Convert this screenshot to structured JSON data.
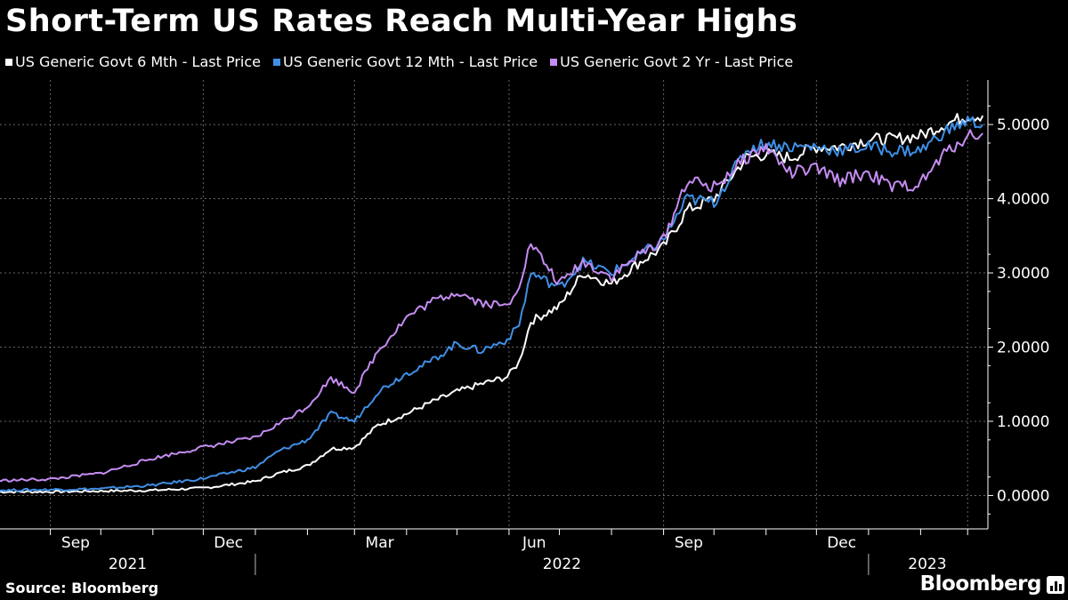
{
  "chart_data": {
    "type": "line",
    "title": "Short-Term US Rates Reach Multi-Year Highs",
    "y_ticks": [
      "0.0000",
      "1.0000",
      "2.0000",
      "3.0000",
      "4.0000",
      "5.0000"
    ],
    "ylim": [
      -0.45,
      5.6
    ],
    "x_ticks": [
      "Sep",
      "Dec",
      "Mar",
      "Jun",
      "Sep",
      "Dec"
    ],
    "x_years": [
      "2021",
      "2022",
      "2023"
    ],
    "x_range": [
      "2021-08-02",
      "2023-03-12"
    ],
    "legend_placement": "top-left",
    "grid": true,
    "series": [
      {
        "name": "US Generic Govt 6 Mth - Last Price",
        "color": "#ffffff",
        "points": [
          [
            "2021-08-01",
            0.05
          ],
          [
            "2021-09-01",
            0.05
          ],
          [
            "2021-10-01",
            0.06
          ],
          [
            "2021-11-01",
            0.07
          ],
          [
            "2021-12-01",
            0.1
          ],
          [
            "2022-01-01",
            0.19
          ],
          [
            "2022-01-15",
            0.3
          ],
          [
            "2022-02-01",
            0.4
          ],
          [
            "2022-02-15",
            0.63
          ],
          [
            "2022-03-01",
            0.65
          ],
          [
            "2022-03-15",
            0.95
          ],
          [
            "2022-04-01",
            1.1
          ],
          [
            "2022-04-15",
            1.25
          ],
          [
            "2022-05-01",
            1.4
          ],
          [
            "2022-05-15",
            1.5
          ],
          [
            "2022-05-31",
            1.6
          ],
          [
            "2022-06-07",
            1.8
          ],
          [
            "2022-06-14",
            2.35
          ],
          [
            "2022-07-01",
            2.55
          ],
          [
            "2022-07-15",
            3.0
          ],
          [
            "2022-08-01",
            2.85
          ],
          [
            "2022-08-15",
            3.1
          ],
          [
            "2022-09-01",
            3.35
          ],
          [
            "2022-09-15",
            3.85
          ],
          [
            "2022-10-01",
            4.0
          ],
          [
            "2022-10-20",
            4.55
          ],
          [
            "2022-11-01",
            4.6
          ],
          [
            "2022-11-15",
            4.55
          ],
          [
            "2022-12-01",
            4.7
          ],
          [
            "2022-12-15",
            4.7
          ],
          [
            "2023-01-01",
            4.8
          ],
          [
            "2023-01-15",
            4.8
          ],
          [
            "2023-02-01",
            4.85
          ],
          [
            "2023-02-15",
            5.0
          ],
          [
            "2023-03-01",
            5.12
          ],
          [
            "2023-03-10",
            5.12
          ]
        ]
      },
      {
        "name": "US Generic Govt 12 Mth - Last Price",
        "color": "#3f8fe6",
        "points": [
          [
            "2021-08-01",
            0.07
          ],
          [
            "2021-09-01",
            0.08
          ],
          [
            "2021-10-01",
            0.09
          ],
          [
            "2021-11-01",
            0.14
          ],
          [
            "2021-12-01",
            0.23
          ],
          [
            "2022-01-01",
            0.38
          ],
          [
            "2022-01-15",
            0.6
          ],
          [
            "2022-02-01",
            0.75
          ],
          [
            "2022-02-15",
            1.1
          ],
          [
            "2022-03-01",
            1.0
          ],
          [
            "2022-03-15",
            1.4
          ],
          [
            "2022-04-01",
            1.65
          ],
          [
            "2022-04-15",
            1.8
          ],
          [
            "2022-05-01",
            2.05
          ],
          [
            "2022-05-15",
            1.95
          ],
          [
            "2022-05-31",
            2.1
          ],
          [
            "2022-06-07",
            2.3
          ],
          [
            "2022-06-14",
            3.0
          ],
          [
            "2022-07-01",
            2.8
          ],
          [
            "2022-07-15",
            3.15
          ],
          [
            "2022-08-01",
            3.0
          ],
          [
            "2022-08-15",
            3.2
          ],
          [
            "2022-09-01",
            3.45
          ],
          [
            "2022-09-15",
            4.0
          ],
          [
            "2022-10-01",
            3.95
          ],
          [
            "2022-10-20",
            4.65
          ],
          [
            "2022-11-01",
            4.75
          ],
          [
            "2022-11-15",
            4.7
          ],
          [
            "2022-12-01",
            4.7
          ],
          [
            "2022-12-15",
            4.65
          ],
          [
            "2023-01-01",
            4.7
          ],
          [
            "2023-01-15",
            4.65
          ],
          [
            "2023-02-01",
            4.65
          ],
          [
            "2023-02-15",
            4.9
          ],
          [
            "2023-03-01",
            5.05
          ],
          [
            "2023-03-10",
            5.0
          ]
        ]
      },
      {
        "name": "US Generic Govt 2 Yr - Last Price",
        "color": "#c58cf2",
        "points": [
          [
            "2021-08-01",
            0.2
          ],
          [
            "2021-09-01",
            0.22
          ],
          [
            "2021-10-01",
            0.3
          ],
          [
            "2021-11-01",
            0.5
          ],
          [
            "2021-12-01",
            0.65
          ],
          [
            "2022-01-01",
            0.78
          ],
          [
            "2022-01-15",
            0.97
          ],
          [
            "2022-02-01",
            1.2
          ],
          [
            "2022-02-15",
            1.58
          ],
          [
            "2022-03-01",
            1.4
          ],
          [
            "2022-03-15",
            1.95
          ],
          [
            "2022-04-01",
            2.4
          ],
          [
            "2022-04-15",
            2.6
          ],
          [
            "2022-05-01",
            2.75
          ],
          [
            "2022-05-15",
            2.6
          ],
          [
            "2022-05-31",
            2.55
          ],
          [
            "2022-06-07",
            2.85
          ],
          [
            "2022-06-14",
            3.4
          ],
          [
            "2022-07-01",
            2.85
          ],
          [
            "2022-07-15",
            3.15
          ],
          [
            "2022-08-01",
            2.95
          ],
          [
            "2022-08-15",
            3.2
          ],
          [
            "2022-09-01",
            3.45
          ],
          [
            "2022-09-15",
            4.25
          ],
          [
            "2022-10-01",
            4.15
          ],
          [
            "2022-10-20",
            4.55
          ],
          [
            "2022-11-01",
            4.7
          ],
          [
            "2022-11-15",
            4.35
          ],
          [
            "2022-12-01",
            4.4
          ],
          [
            "2022-12-15",
            4.25
          ],
          [
            "2023-01-01",
            4.35
          ],
          [
            "2023-01-15",
            4.15
          ],
          [
            "2023-02-01",
            4.2
          ],
          [
            "2023-02-15",
            4.6
          ],
          [
            "2023-03-01",
            4.85
          ],
          [
            "2023-03-10",
            4.88
          ]
        ]
      }
    ]
  },
  "source": "Source: Bloomberg",
  "logo": "Bloomberg",
  "colors": {
    "background": "#000000",
    "grid": "#555555",
    "text": "#ffffff"
  }
}
